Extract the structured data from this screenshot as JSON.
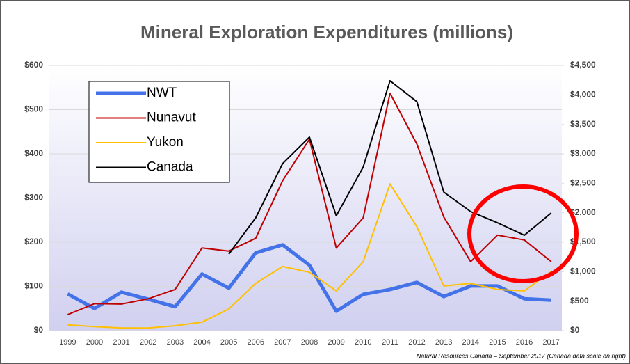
{
  "chart_data": {
    "type": "line",
    "title": "Mineral Exploration Expenditures (millions)",
    "note": "Natural Resources Canada – September 2017 (Canada data scale on right)",
    "categories": [
      "1999",
      "2000",
      "2001",
      "2002",
      "2003",
      "2004",
      "2005",
      "2006",
      "2007",
      "2008",
      "2009",
      "2010",
      "2011",
      "2012",
      "2013",
      "2014",
      "2015",
      "2016",
      "2017"
    ],
    "series": [
      {
        "name": "NWT",
        "color": "#4472e8",
        "width": 5,
        "values": [
          83,
          50,
          87,
          71,
          54,
          128,
          96,
          176,
          194,
          148,
          44,
          82,
          93,
          109,
          77,
          101,
          101,
          72,
          69
        ]
      },
      {
        "name": "Nunavut",
        "color": "#c00000",
        "width": 2,
        "values": [
          36,
          61,
          60,
          72,
          93,
          187,
          180,
          209,
          339,
          433,
          187,
          255,
          537,
          422,
          257,
          156,
          216,
          205,
          156
        ]
      },
      {
        "name": "Yukon",
        "color": "#ffc000",
        "width": 2,
        "values": [
          13,
          9,
          6,
          6,
          11,
          19,
          49,
          107,
          145,
          132,
          90,
          156,
          332,
          235,
          101,
          107,
          93,
          90,
          134
        ]
      },
      {
        "name": "Canada",
        "color": "#000000",
        "width": 2,
        "axis": "y2",
        "values": [
          null,
          null,
          null,
          null,
          null,
          null,
          1299,
          1913,
          2834,
          3283,
          1949,
          2775,
          4240,
          3885,
          2350,
          2020,
          1830,
          1618,
          1996
        ]
      }
    ],
    "ylim": [
      0,
      600
    ],
    "yticks": [
      {
        "value": 0,
        "label": "$0"
      },
      {
        "value": 100,
        "label": "$100"
      },
      {
        "value": 200,
        "label": "$200"
      },
      {
        "value": 300,
        "label": "$300"
      },
      {
        "value": 400,
        "label": "$400"
      },
      {
        "value": 500,
        "label": "$500"
      },
      {
        "value": 600,
        "label": "$600"
      }
    ],
    "y2lim": [
      0,
      4500
    ],
    "y2ticks": [
      {
        "value": 0,
        "label": "$0"
      },
      {
        "value": 500,
        "label": "$500"
      },
      {
        "value": 1000,
        "label": "$1,000"
      },
      {
        "value": 1500,
        "label": "$1,500"
      },
      {
        "value": 2000,
        "label": "$2,000"
      },
      {
        "value": 2500,
        "label": "$2,500"
      },
      {
        "value": 3000,
        "label": "$3,000"
      },
      {
        "value": 3500,
        "label": "$3,500"
      },
      {
        "value": 4000,
        "label": "$4,000"
      },
      {
        "value": 4500,
        "label": "$4,500"
      }
    ],
    "grid": true,
    "legend": "upper left"
  }
}
